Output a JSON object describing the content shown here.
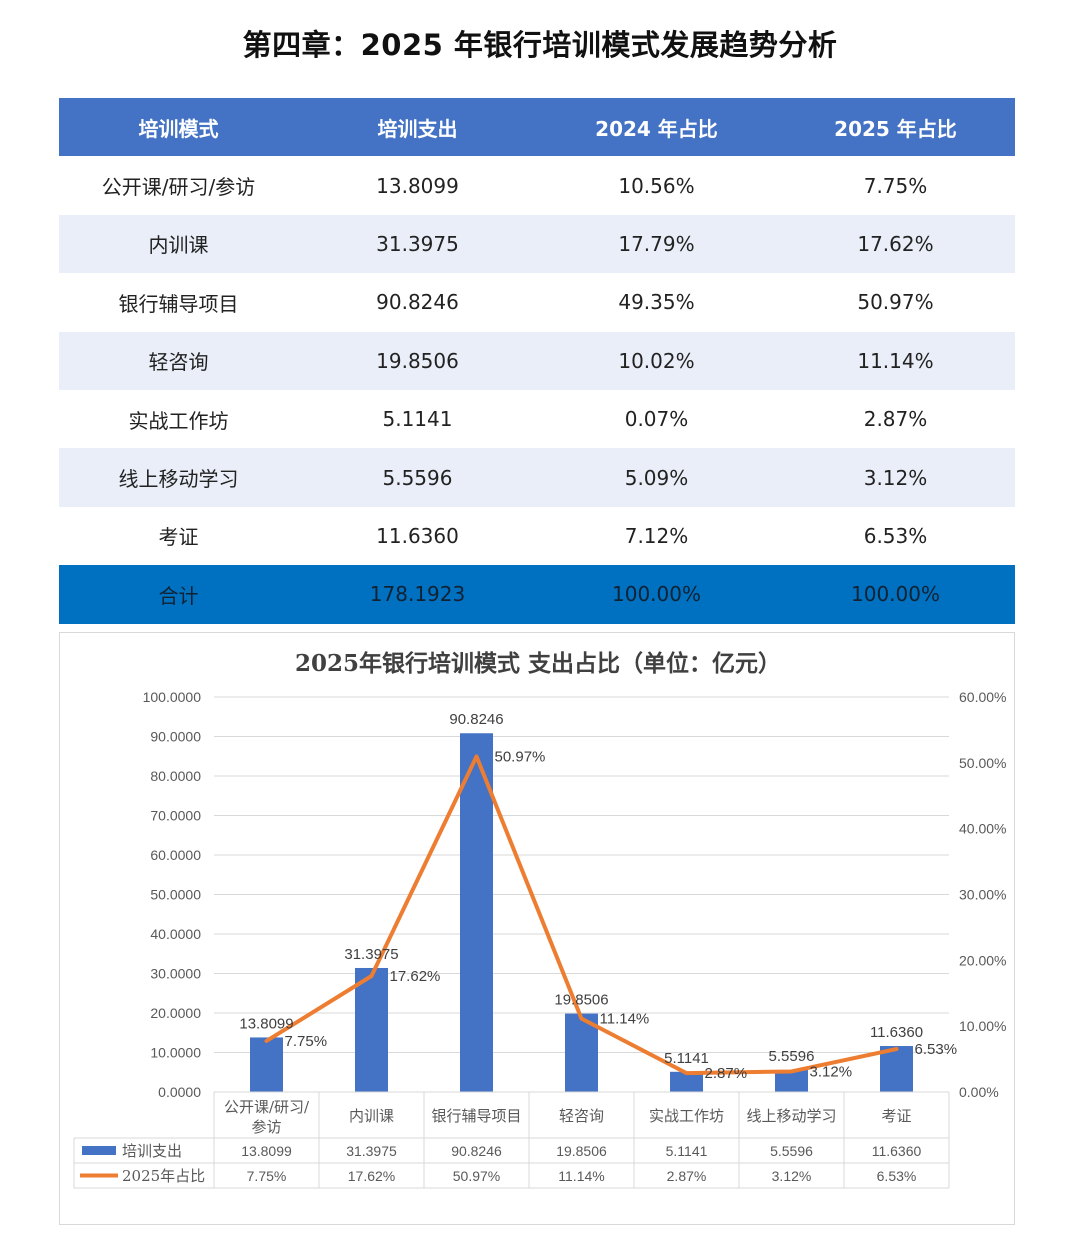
{
  "title": "第四章：2025 年银行培训模式发展趋势分析",
  "table": {
    "headers": [
      "培训模式",
      "培训支出",
      "2024 年占比",
      "2025 年占比"
    ],
    "rows": [
      [
        "公开课/研习/参访",
        "13.8099",
        "10.56%",
        "7.75%"
      ],
      [
        "内训课",
        "31.3975",
        "17.79%",
        "17.62%"
      ],
      [
        "银行辅导项目",
        "90.8246",
        "49.35%",
        "50.97%"
      ],
      [
        "轻咨询",
        "19.8506",
        "10.02%",
        "11.14%"
      ],
      [
        "实战工作坊",
        "5.1141",
        "0.07%",
        "2.87%"
      ],
      [
        "线上移动学习",
        "5.5596",
        "5.09%",
        "3.12%"
      ],
      [
        "考证",
        "11.6360",
        "7.12%",
        "6.53%"
      ]
    ],
    "total": [
      "合计",
      "178.1923",
      "100.00%",
      "100.00%"
    ]
  },
  "chart_data": {
    "type": "bar",
    "title": "2025年银行培训模式 支出占比（单位：亿元）",
    "categories": [
      "公开课/研习/参访",
      "内训课",
      "银行辅导项目",
      "轻咨询",
      "实战工作坊",
      "线上移动学习",
      "考证"
    ],
    "category_display": [
      [
        "公开课/研习/",
        "参访"
      ],
      [
        "内训课"
      ],
      [
        "银行辅导项目"
      ],
      [
        "轻咨询"
      ],
      [
        "实战工作坊"
      ],
      [
        "线上移动学习"
      ],
      [
        "考证"
      ]
    ],
    "series": [
      {
        "name": "培训支出",
        "type": "bar",
        "axis": "left",
        "color": "#4472c4",
        "values": [
          13.8099,
          31.3975,
          90.8246,
          19.8506,
          5.1141,
          5.5596,
          11.636
        ],
        "labels": [
          "13.8099",
          "31.3975",
          "90.8246",
          "19.8506",
          "5.1141",
          "5.5596",
          "11.6360"
        ]
      },
      {
        "name": "2025年占比",
        "type": "line",
        "axis": "right",
        "color": "#ed7d31",
        "values": [
          7.75,
          17.62,
          50.97,
          11.14,
          2.87,
          3.12,
          6.53
        ],
        "labels": [
          "7.75%",
          "17.62%",
          "50.97%",
          "11.14%",
          "2.87%",
          "3.12%",
          "6.53%"
        ]
      }
    ],
    "y_left": {
      "range": [
        0,
        100
      ],
      "ticks": [
        "0.0000",
        "10.0000",
        "20.0000",
        "30.0000",
        "40.0000",
        "50.0000",
        "60.0000",
        "70.0000",
        "80.0000",
        "90.0000",
        "100.0000"
      ]
    },
    "y_right": {
      "range": [
        0,
        60
      ],
      "ticks": [
        "0.00%",
        "10.00%",
        "20.00%",
        "30.00%",
        "40.00%",
        "50.00%",
        "60.00%"
      ]
    },
    "grid": true,
    "data_table": true
  }
}
